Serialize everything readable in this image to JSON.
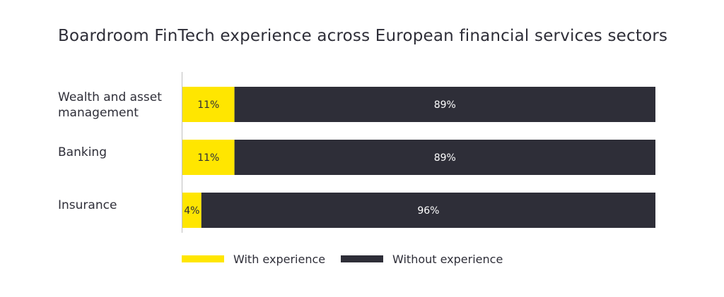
{
  "title": "Boardroom FinTech experience across European financial services sectors",
  "chart_data": {
    "type": "bar",
    "orientation": "horizontal",
    "stacked": true,
    "title": "Boardroom FinTech experience across European financial services sectors",
    "categories": [
      [
        "Wealth and asset",
        "management"
      ],
      [
        "Banking"
      ],
      [
        "Insurance"
      ]
    ],
    "series": [
      {
        "name": "With experience",
        "color": "#ffe600",
        "values": [
          11,
          11,
          4
        ],
        "labels": [
          "11%",
          "11%",
          "4%"
        ]
      },
      {
        "name": "Without experience",
        "color": "#2e2e38",
        "values": [
          89,
          89,
          96
        ],
        "labels": [
          "89%",
          "89%",
          "96%"
        ]
      }
    ],
    "xlim": [
      0,
      100
    ],
    "grid": false,
    "legend_position": "bottom"
  }
}
